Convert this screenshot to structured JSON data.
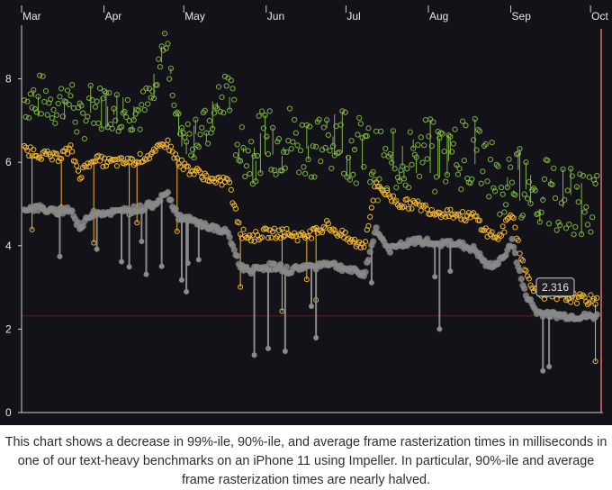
{
  "chart_data": {
    "type": "scatter",
    "title": "",
    "xlabel": "",
    "ylabel": "",
    "ylim": [
      0,
      9.2
    ],
    "y_ticks": [
      "0",
      "2",
      "4",
      "6",
      "8"
    ],
    "x_ticks": [
      "Mar",
      "Apr",
      "May",
      "Jun",
      "Jul",
      "Aug",
      "Sep",
      "Oct"
    ],
    "grid": false,
    "legend": "none",
    "reference_line": 2.316,
    "tooltip_value": "2.316",
    "series": [
      {
        "color": "#7cb342",
        "points": [
          [
            0,
            7.5
          ],
          [
            5,
            7.6
          ],
          [
            10,
            7.4
          ],
          [
            15,
            7.6
          ],
          [
            18,
            6.9
          ],
          [
            22,
            7.4
          ],
          [
            26,
            7.3
          ],
          [
            30,
            7.3
          ],
          [
            34,
            7.25
          ],
          [
            38,
            7.2
          ],
          [
            42,
            7.6
          ],
          [
            46,
            9.1
          ],
          [
            50,
            6.8
          ],
          [
            54,
            6.6
          ],
          [
            58,
            6.7
          ],
          [
            62,
            7.1
          ],
          [
            66,
            7.9
          ],
          [
            70,
            6.3
          ],
          [
            74,
            6.2
          ],
          [
            78,
            6.4
          ],
          [
            82,
            6.5
          ],
          [
            86,
            6.6
          ],
          [
            90,
            6.4
          ],
          [
            94,
            6.5
          ],
          [
            98,
            6.5
          ],
          [
            102,
            6.7
          ],
          [
            106,
            6.4
          ],
          [
            110,
            6.2
          ],
          [
            114,
            6.0
          ],
          [
            118,
            5.7
          ],
          [
            122,
            6.2
          ],
          [
            126,
            6.1
          ],
          [
            130,
            6.3
          ],
          [
            134,
            6.0
          ],
          [
            138,
            6.4
          ],
          [
            142,
            6.2
          ],
          [
            146,
            6.3
          ],
          [
            150,
            6.1
          ],
          [
            154,
            5.4
          ],
          [
            158,
            5.3
          ],
          [
            162,
            5.6
          ],
          [
            166,
            5.2
          ],
          [
            170,
            5.2
          ],
          [
            174,
            5.0
          ],
          [
            178,
            5.1
          ],
          [
            182,
            5.0
          ],
          [
            186,
            4.9
          ]
        ]
      },
      {
        "color": "#f2b632",
        "points": [
          [
            0,
            6.3
          ],
          [
            5,
            6.2
          ],
          [
            10,
            6.1
          ],
          [
            15,
            6.3
          ],
          [
            18,
            5.7
          ],
          [
            22,
            6.1
          ],
          [
            26,
            6.0
          ],
          [
            30,
            6.0
          ],
          [
            34,
            6.0
          ],
          [
            38,
            6.1
          ],
          [
            42,
            6.2
          ],
          [
            46,
            6.5
          ],
          [
            50,
            6.0
          ],
          [
            54,
            5.8
          ],
          [
            58,
            5.7
          ],
          [
            62,
            5.5
          ],
          [
            66,
            5.6
          ],
          [
            70,
            4.3
          ],
          [
            74,
            4.2
          ],
          [
            78,
            4.3
          ],
          [
            82,
            4.3
          ],
          [
            86,
            4.3
          ],
          [
            90,
            4.2
          ],
          [
            94,
            4.3
          ],
          [
            98,
            4.5
          ],
          [
            102,
            4.3
          ],
          [
            106,
            4.1
          ],
          [
            110,
            4.0
          ],
          [
            114,
            5.5
          ],
          [
            118,
            5.2
          ],
          [
            122,
            5.0
          ],
          [
            126,
            5.0
          ],
          [
            130,
            4.9
          ],
          [
            134,
            4.8
          ],
          [
            138,
            4.8
          ],
          [
            142,
            4.7
          ],
          [
            146,
            4.7
          ],
          [
            150,
            4.3
          ],
          [
            154,
            4.2
          ],
          [
            158,
            4.8
          ],
          [
            162,
            3.4
          ],
          [
            166,
            2.9
          ],
          [
            170,
            2.8
          ],
          [
            174,
            2.75
          ],
          [
            178,
            2.75
          ],
          [
            182,
            2.7
          ],
          [
            186,
            2.7
          ]
        ]
      },
      {
        "color": "#8a8a8a",
        "points": [
          [
            0,
            4.9
          ],
          [
            5,
            4.9
          ],
          [
            10,
            4.8
          ],
          [
            15,
            4.9
          ],
          [
            18,
            4.4
          ],
          [
            22,
            4.8
          ],
          [
            26,
            4.8
          ],
          [
            30,
            4.8
          ],
          [
            34,
            4.85
          ],
          [
            38,
            4.9
          ],
          [
            42,
            5.0
          ],
          [
            46,
            5.3
          ],
          [
            50,
            4.7
          ],
          [
            54,
            4.6
          ],
          [
            58,
            4.5
          ],
          [
            62,
            4.4
          ],
          [
            66,
            4.3
          ],
          [
            70,
            3.5
          ],
          [
            74,
            3.4
          ],
          [
            78,
            3.5
          ],
          [
            82,
            3.5
          ],
          [
            86,
            3.4
          ],
          [
            90,
            3.5
          ],
          [
            94,
            3.5
          ],
          [
            98,
            3.6
          ],
          [
            102,
            3.5
          ],
          [
            106,
            3.4
          ],
          [
            110,
            3.3
          ],
          [
            114,
            4.4
          ],
          [
            118,
            3.9
          ],
          [
            122,
            4.0
          ],
          [
            126,
            4.1
          ],
          [
            130,
            4.1
          ],
          [
            134,
            4.0
          ],
          [
            138,
            4.1
          ],
          [
            142,
            4.0
          ],
          [
            146,
            3.9
          ],
          [
            150,
            3.5
          ],
          [
            154,
            3.6
          ],
          [
            158,
            4.1
          ],
          [
            162,
            2.9
          ],
          [
            166,
            2.4
          ],
          [
            170,
            2.35
          ],
          [
            174,
            2.32
          ],
          [
            178,
            2.3
          ],
          [
            182,
            2.3
          ],
          [
            186,
            2.3
          ]
        ]
      }
    ]
  },
  "caption": "This chart shows a decrease in 99%-ile, 90%-ile, and average frame rasterization times in milliseconds in one of our text-heavy benchmarks on an iPhone 11 using Impeller. In particular, 90%-ile and average frame rasterization times are nearly halved."
}
